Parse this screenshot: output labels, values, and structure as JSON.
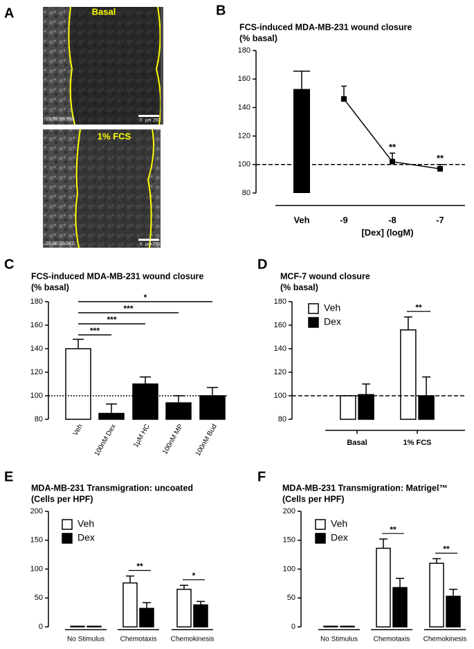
{
  "panel_a": {
    "panel": "A",
    "images": [
      {
        "label": "Basal",
        "timestamp": "15:59:59.953",
        "scale_start": "0",
        "scale_unit": "µm",
        "scale_end": "250"
      },
      {
        "label": "1% FCS",
        "timestamp": "16:00:00.047",
        "scale_start": "0",
        "scale_unit": "µm",
        "scale_end": "250"
      }
    ]
  },
  "chart_data": [
    {
      "panel": "B",
      "type": "bar_line",
      "title": "FCS-induced MDA-MB-231 wound closure",
      "subtitle": "(% basal)",
      "x_label": "[Dex] (logM)",
      "categories": [
        "Veh",
        "-9",
        "-8",
        "-7"
      ],
      "series": [
        {
          "kind": "bar",
          "color": "#000000",
          "values": [
            153,
            null,
            null,
            null
          ],
          "errors": [
            12.5,
            null,
            null,
            null
          ]
        },
        {
          "kind": "line",
          "color": "#000000",
          "values": [
            null,
            146,
            102,
            97
          ],
          "errors": [
            null,
            9,
            6,
            3
          ]
        }
      ],
      "annotations": [
        null,
        null,
        "**",
        "**"
      ],
      "ylim": [
        80,
        180
      ],
      "yticks": [
        80,
        100,
        120,
        140,
        160,
        180
      ],
      "reference_line": 100
    },
    {
      "panel": "C",
      "type": "bar",
      "title": "FCS-induced MDA-MB-231 wound closure",
      "subtitle": "(% basal)",
      "categories": [
        "Veh",
        "100nM Dex",
        "1µM HC",
        "100nM MP",
        "100nM Bud"
      ],
      "values": [
        140,
        85,
        110,
        94,
        100
      ],
      "errors": [
        8,
        8,
        6,
        6,
        7
      ],
      "colors": [
        "#ffffff",
        "#000000",
        "#000000",
        "#000000",
        "#000000"
      ],
      "comparisons": [
        "***",
        "***",
        "***",
        "*"
      ],
      "ylim": [
        80,
        180
      ],
      "yticks": [
        80,
        100,
        120,
        140,
        160,
        180
      ],
      "reference_line": 100
    },
    {
      "panel": "D",
      "type": "grouped_bar",
      "title": "MCF-7 wound closure",
      "subtitle": "(% basal)",
      "categories": [
        "Basal",
        "1% FCS"
      ],
      "series": [
        {
          "name": "Veh",
          "color": "#ffffff",
          "values": [
            100,
            156
          ],
          "errors": [
            0,
            11
          ]
        },
        {
          "name": "Dex",
          "color": "#000000",
          "values": [
            101,
            100
          ],
          "errors": [
            9,
            16
          ]
        }
      ],
      "significance": [
        null,
        "**"
      ],
      "ylim": [
        80,
        180
      ],
      "yticks": [
        80,
        100,
        120,
        140,
        160,
        180
      ],
      "reference_line": 100
    },
    {
      "panel": "E",
      "type": "grouped_bar",
      "title": "MDA-MB-231 Transmigration: uncoated",
      "subtitle": "(Cells per HPF)",
      "categories": [
        "No Stimulus",
        "Chemotaxis",
        "Chemokinesis"
      ],
      "series": [
        {
          "name": "Veh",
          "color": "#ffffff",
          "values": [
            1,
            76,
            65
          ],
          "errors": [
            0,
            12,
            7
          ]
        },
        {
          "name": "Dex",
          "color": "#000000",
          "values": [
            1,
            32,
            38
          ],
          "errors": [
            0,
            10,
            6
          ]
        }
      ],
      "significance": [
        null,
        "**",
        "*"
      ],
      "ylim": [
        0,
        200
      ],
      "yticks": [
        0,
        50,
        100,
        150,
        200
      ]
    },
    {
      "panel": "F",
      "type": "grouped_bar",
      "title": "MDA-MB-231 Transmigration: Matrigel™",
      "subtitle": "(Cells per HPF)",
      "categories": [
        "No Stimulus",
        "Chemotaxis",
        "Chemokinesis"
      ],
      "series": [
        {
          "name": "Veh",
          "color": "#ffffff",
          "values": [
            1,
            136,
            110
          ],
          "errors": [
            0,
            16,
            8
          ]
        },
        {
          "name": "Dex",
          "color": "#000000",
          "values": [
            1,
            68,
            53
          ],
          "errors": [
            0,
            16,
            12
          ]
        }
      ],
      "significance": [
        null,
        "**",
        "**"
      ],
      "ylim": [
        0,
        200
      ],
      "yticks": [
        0,
        50,
        100,
        150,
        200
      ]
    }
  ]
}
